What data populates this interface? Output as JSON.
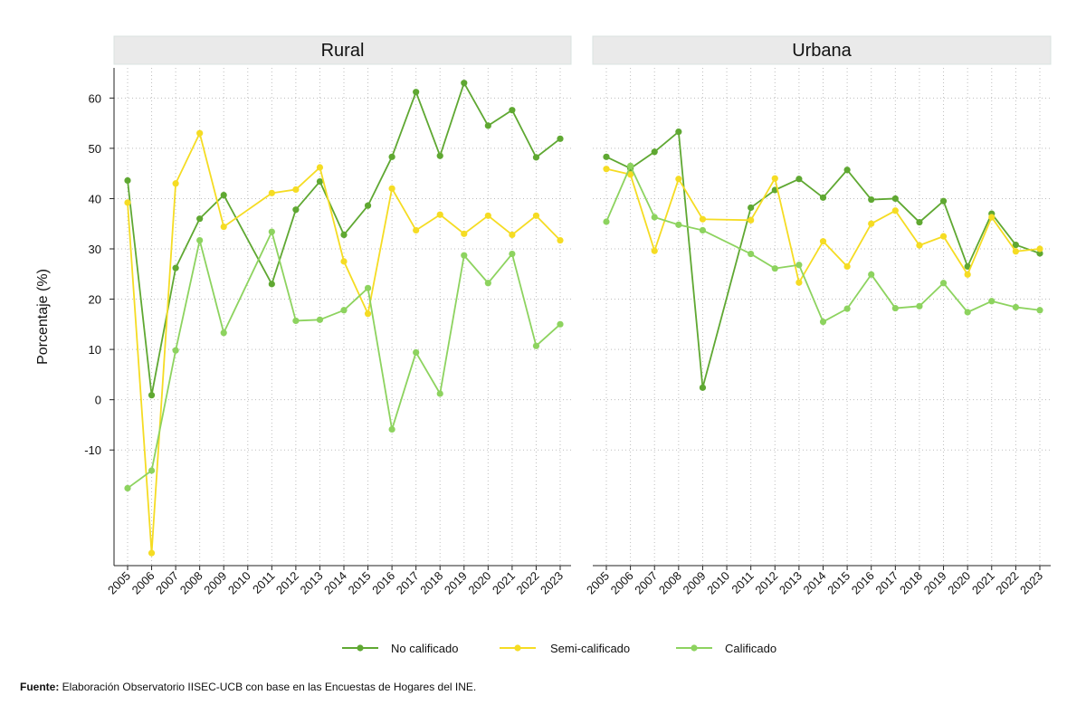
{
  "chart_data": {
    "type": "line",
    "ylabel": "Porcentaje (%)",
    "ylim": [
      -33,
      66
    ],
    "yticks": [
      -10,
      0,
      10,
      20,
      30,
      40,
      50,
      60
    ],
    "grid": true,
    "legend_position": "bottom",
    "x": [
      "2005",
      "2006",
      "2007",
      "2008",
      "2009",
      "2010",
      "2011",
      "2012",
      "2013",
      "2014",
      "2015",
      "2016",
      "2017",
      "2018",
      "2019",
      "2020",
      "2021",
      "2022",
      "2023"
    ],
    "panels": [
      {
        "title": "Rural",
        "series": [
          {
            "name": "No calificado",
            "color": "#5fa832",
            "values": [
              43.6,
              0.9,
              26.2,
              36.0,
              40.7,
              null,
              23.0,
              37.8,
              43.4,
              32.8,
              38.6,
              48.3,
              61.2,
              48.5,
              63.0,
              54.5,
              57.6,
              48.2,
              51.9
            ]
          },
          {
            "name": "Semi-calificado",
            "color": "#f5dc23",
            "values": [
              39.2,
              -30.5,
              43.0,
              53.0,
              34.4,
              null,
              41.1,
              41.8,
              46.2,
              27.5,
              17.1,
              42.0,
              33.7,
              36.8,
              33.0,
              36.6,
              32.8,
              36.6,
              31.7
            ]
          },
          {
            "name": "Calificado",
            "color": "#8dd35f",
            "values": [
              -17.6,
              -14.1,
              9.8,
              31.7,
              13.3,
              null,
              33.4,
              15.7,
              15.9,
              17.8,
              22.2,
              -5.9,
              9.4,
              1.2,
              28.7,
              23.2,
              29.0,
              10.7,
              15.0
            ]
          }
        ]
      },
      {
        "title": "Urbana",
        "series": [
          {
            "name": "No calificado",
            "color": "#5fa832",
            "values": [
              48.3,
              46.0,
              49.3,
              53.3,
              2.4,
              null,
              38.2,
              41.7,
              43.9,
              40.2,
              45.7,
              39.8,
              40.0,
              35.3,
              39.5,
              26.5,
              37.0,
              30.8,
              29.1
            ]
          },
          {
            "name": "Semi-calificado",
            "color": "#f5dc23",
            "values": [
              45.9,
              44.8,
              29.6,
              43.9,
              35.9,
              null,
              35.7,
              44.0,
              23.3,
              31.5,
              26.5,
              35.0,
              37.6,
              30.7,
              32.5,
              24.9,
              36.3,
              29.5,
              30.0
            ]
          },
          {
            "name": "Calificado",
            "color": "#8dd35f",
            "values": [
              35.4,
              46.5,
              36.3,
              34.8,
              33.7,
              null,
              29.0,
              26.1,
              26.8,
              15.5,
              18.1,
              24.9,
              18.2,
              18.6,
              23.2,
              17.4,
              19.6,
              18.4,
              17.8
            ]
          }
        ]
      }
    ],
    "legend": [
      "No calificado",
      "Semi-calificado",
      "Calificado"
    ]
  },
  "source": {
    "label": "Fuente:",
    "text": " Elaboración Observatorio IISEC-UCB con base en las Encuestas de Hogares del INE."
  }
}
